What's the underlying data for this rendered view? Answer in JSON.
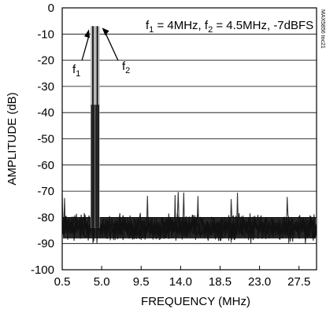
{
  "chart_data": {
    "type": "line",
    "xlabel": "FREQUENCY (MHz)",
    "ylabel": "AMPLITUDE (dB)",
    "xlim": [
      0.5,
      29.5
    ],
    "ylim": [
      -100,
      0
    ],
    "x_ticks": [
      0.5,
      5.0,
      9.5,
      14.0,
      18.5,
      23.0,
      27.5
    ],
    "x_tick_labels": [
      "0.5",
      "5.0",
      "9.5",
      "14.0",
      "18.5",
      "23.0",
      "27.5"
    ],
    "y_ticks": [
      0,
      -10,
      -20,
      -30,
      -40,
      -50,
      -60,
      -70,
      -80,
      -90,
      -100
    ],
    "y_tick_labels": [
      "0",
      "-10",
      "-20",
      "-30",
      "-40",
      "-50",
      "-60",
      "-70",
      "-80",
      "-90",
      "-100"
    ],
    "grid": "horizontal",
    "annotation": {
      "text_parts": [
        "f",
        "1",
        " = 4MHz, f",
        "2",
        " = 4.5MHz, -7dBFS"
      ]
    },
    "markers": [
      {
        "label": "f",
        "sub": "1",
        "x": 4.0,
        "y": -7
      },
      {
        "label": "f",
        "sub": "2",
        "x": 4.5,
        "y": -7
      }
    ],
    "tones": [
      {
        "x": 4.0,
        "y": -7
      },
      {
        "x": 4.5,
        "y": -7
      }
    ],
    "noise_floor": {
      "center": -84,
      "spread": 9
    },
    "side_text": "MAX5856 toc21"
  }
}
